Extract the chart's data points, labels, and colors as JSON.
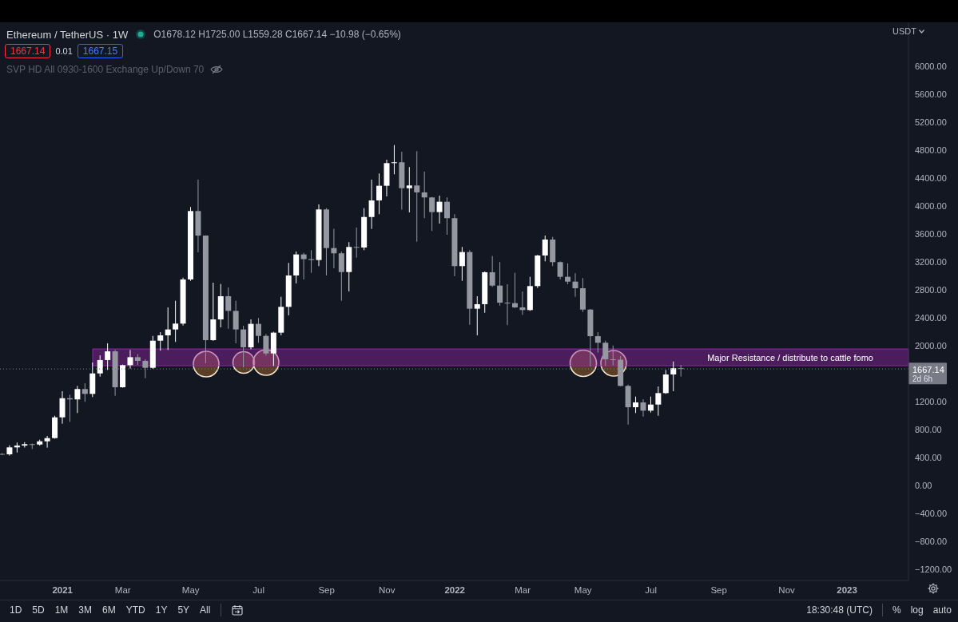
{
  "chart_data": {
    "type": "candlestick",
    "title": "Ethereum / TetherUS · 1W",
    "ylabel": "USDT",
    "x": [
      "2020-11-09",
      "2020-11-16",
      "2020-11-23",
      "2020-11-30",
      "2020-12-07",
      "2020-12-14",
      "2020-12-21",
      "2020-12-28",
      "2021-01-04",
      "2021-01-11",
      "2021-01-18",
      "2021-01-25",
      "2021-02-01",
      "2021-02-08",
      "2021-02-15",
      "2021-02-22",
      "2021-03-01",
      "2021-03-08",
      "2021-03-15",
      "2021-03-22",
      "2021-03-29",
      "2021-04-05",
      "2021-04-12",
      "2021-04-19",
      "2021-04-26",
      "2021-05-03",
      "2021-05-10",
      "2021-05-17",
      "2021-05-24",
      "2021-05-31",
      "2021-06-07",
      "2021-06-14",
      "2021-06-21",
      "2021-06-28",
      "2021-07-05",
      "2021-07-12",
      "2021-07-19",
      "2021-07-26",
      "2021-08-02",
      "2021-08-09",
      "2021-08-16",
      "2021-08-23",
      "2021-08-30",
      "2021-09-06",
      "2021-09-13",
      "2021-09-20",
      "2021-09-27",
      "2021-10-04",
      "2021-10-11",
      "2021-10-18",
      "2021-10-25",
      "2021-11-01",
      "2021-11-08",
      "2021-11-15",
      "2021-11-22",
      "2021-11-29",
      "2021-12-06",
      "2021-12-13",
      "2021-12-20",
      "2021-12-27",
      "2022-01-03",
      "2022-01-10",
      "2022-01-17",
      "2022-01-24",
      "2022-01-31",
      "2022-02-07",
      "2022-02-14",
      "2022-02-21",
      "2022-02-28",
      "2022-03-07",
      "2022-03-14",
      "2022-03-21",
      "2022-03-28",
      "2022-04-04",
      "2022-04-11",
      "2022-04-18",
      "2022-04-25",
      "2022-05-02",
      "2022-05-09",
      "2022-05-16",
      "2022-05-23",
      "2022-05-30",
      "2022-06-06",
      "2022-06-13",
      "2022-06-20",
      "2022-06-27",
      "2022-07-04",
      "2022-07-11",
      "2022-07-18",
      "2022-07-25",
      "2022-08-01"
    ],
    "ohlc": [
      [
        452,
        462,
        438,
        446
      ],
      [
        446,
        575,
        428,
        545
      ],
      [
        545,
        614,
        472,
        571
      ],
      [
        571,
        620,
        543,
        591
      ],
      [
        591,
        600,
        522,
        586
      ],
      [
        586,
        655,
        570,
        632
      ],
      [
        632,
        708,
        541,
        678
      ],
      [
        678,
        998,
        670,
        975
      ],
      [
        975,
        1349,
        884,
        1249
      ],
      [
        1249,
        1300,
        910,
        1232
      ],
      [
        1232,
        1425,
        1037,
        1380
      ],
      [
        1380,
        1463,
        1197,
        1311
      ],
      [
        1311,
        1760,
        1265,
        1604
      ],
      [
        1604,
        1863,
        1558,
        1795
      ],
      [
        1795,
        2035,
        1654,
        1920
      ],
      [
        1920,
        1940,
        1284,
        1406
      ],
      [
        1406,
        1730,
        1400,
        1722
      ],
      [
        1722,
        1939,
        1672,
        1836
      ],
      [
        1836,
        1880,
        1725,
        1784
      ],
      [
        1784,
        1806,
        1536,
        1684
      ],
      [
        1684,
        2141,
        1670,
        2072
      ],
      [
        2072,
        2194,
        1930,
        2149
      ],
      [
        2149,
        2549,
        1939,
        2233
      ],
      [
        2233,
        2644,
        2054,
        2317
      ],
      [
        2317,
        2975,
        2290,
        2949
      ],
      [
        2949,
        3986,
        2930,
        3928
      ],
      [
        3928,
        4378,
        3338,
        3577
      ],
      [
        3577,
        3580,
        1749,
        2080
      ],
      [
        2080,
        2903,
        2070,
        2377
      ],
      [
        2377,
        2884,
        2263,
        2709
      ],
      [
        2709,
        2835,
        2244,
        2499
      ],
      [
        2499,
        2644,
        2035,
        2233
      ],
      [
        2233,
        2286,
        1692,
        1977
      ],
      [
        1977,
        2377,
        1950,
        2313
      ],
      [
        2313,
        2397,
        2043,
        2141
      ],
      [
        2141,
        2168,
        1860,
        1890
      ],
      [
        1890,
        2200,
        1711,
        2187
      ],
      [
        2187,
        2701,
        2149,
        2557
      ],
      [
        2557,
        3185,
        2435,
        3006
      ],
      [
        3006,
        3349,
        2892,
        3307
      ],
      [
        3307,
        3330,
        2949,
        3240
      ],
      [
        3240,
        3368,
        3044,
        3227
      ],
      [
        3227,
        4023,
        3140,
        3951
      ],
      [
        3951,
        3970,
        3006,
        3398
      ],
      [
        3398,
        3673,
        3109,
        3323
      ],
      [
        3323,
        3349,
        2644,
        3055
      ],
      [
        3055,
        3483,
        2777,
        3414
      ],
      [
        3414,
        3692,
        3261,
        3406
      ],
      [
        3406,
        3970,
        3368,
        3843
      ],
      [
        3843,
        4378,
        3673,
        4080
      ],
      [
        4080,
        4466,
        3883,
        4290
      ],
      [
        4290,
        4663,
        4138,
        4614
      ],
      [
        4614,
        4873,
        4454,
        4626
      ],
      [
        4626,
        4777,
        3947,
        4255
      ],
      [
        4255,
        4558,
        3909,
        4294
      ],
      [
        4294,
        4785,
        3490,
        4195
      ],
      [
        4195,
        4492,
        3826,
        4123
      ],
      [
        4123,
        4130,
        3643,
        3913
      ],
      [
        3913,
        4149,
        3749,
        4061
      ],
      [
        4061,
        4123,
        3589,
        3826
      ],
      [
        3826,
        3883,
        2995,
        3140
      ],
      [
        3140,
        3414,
        2930,
        3341
      ],
      [
        3341,
        3368,
        2301,
        2530
      ],
      [
        2530,
        2709,
        2149,
        2595
      ],
      [
        2595,
        3063,
        2472,
        3052
      ],
      [
        3052,
        3284,
        2842,
        2861
      ],
      [
        2861,
        3197,
        2575,
        2617
      ],
      [
        2617,
        2880,
        2294,
        2610
      ],
      [
        2610,
        3044,
        2541,
        2549
      ],
      [
        2549,
        2777,
        2442,
        2511
      ],
      [
        2511,
        2987,
        2499,
        2854
      ],
      [
        2854,
        3300,
        2827,
        3292
      ],
      [
        3292,
        3578,
        3208,
        3520
      ],
      [
        3520,
        3558,
        3140,
        3197
      ],
      [
        3197,
        3208,
        2949,
        2987
      ],
      [
        2987,
        3178,
        2880,
        2918
      ],
      [
        2918,
        3037,
        2701,
        2823
      ],
      [
        2823,
        2968,
        2484,
        2518
      ],
      [
        2518,
        2525,
        1704,
        2137
      ],
      [
        2137,
        2194,
        1901,
        2043
      ],
      [
        2043,
        2072,
        1711,
        1806
      ],
      [
        1806,
        2003,
        1720,
        1800
      ],
      [
        1800,
        1850,
        1420,
        1425
      ],
      [
        1425,
        1443,
        872,
        1120
      ],
      [
        1120,
        1272,
        1037,
        1189
      ],
      [
        1189,
        1234,
        986,
        1071
      ],
      [
        1071,
        1272,
        1044,
        1158
      ],
      [
        1158,
        1417,
        998,
        1322
      ],
      [
        1322,
        1654,
        1311,
        1589
      ],
      [
        1589,
        1775,
        1349,
        1678.12
      ],
      [
        1678.12,
        1725.0,
        1559.28,
        1667.14
      ]
    ],
    "colors": [
      "#9598a1",
      "#ffffff",
      "#ffffff",
      "#ffffff",
      "#9598a1",
      "#ffffff",
      "#ffffff",
      "#ffffff",
      "#ffffff",
      "#9598a1",
      "#ffffff",
      "#9598a1",
      "#ffffff",
      "#ffffff",
      "#ffffff",
      "#9598a1",
      "#ffffff",
      "#ffffff",
      "#9598a1",
      "#9598a1",
      "#ffffff",
      "#ffffff",
      "#ffffff",
      "#ffffff",
      "#ffffff",
      "#ffffff",
      "#9598a1",
      "#9598a1",
      "#ffffff",
      "#ffffff",
      "#9598a1",
      "#9598a1",
      "#9598a1",
      "#ffffff",
      "#9598a1",
      "#9598a1",
      "#ffffff",
      "#ffffff",
      "#ffffff",
      "#ffffff",
      "#9598a1",
      "#9598a1",
      "#ffffff",
      "#9598a1",
      "#9598a1",
      "#9598a1",
      "#ffffff",
      "#9598a1",
      "#ffffff",
      "#ffffff",
      "#ffffff",
      "#ffffff",
      "#ffffff",
      "#9598a1",
      "#ffffff",
      "#9598a1",
      "#9598a1",
      "#9598a1",
      "#ffffff",
      "#9598a1",
      "#9598a1",
      "#ffffff",
      "#9598a1",
      "#ffffff",
      "#ffffff",
      "#9598a1",
      "#9598a1",
      "#9598a1",
      "#9598a1",
      "#9598a1",
      "#ffffff",
      "#ffffff",
      "#ffffff",
      "#9598a1",
      "#9598a1",
      "#9598a1",
      "#9598a1",
      "#9598a1",
      "#9598a1",
      "#9598a1",
      "#9598a1",
      "#9598a1",
      "#9598a1",
      "#9598a1",
      "#ffffff",
      "#9598a1",
      "#ffffff",
      "#ffffff",
      "#ffffff",
      "#ffffff",
      "#9598a1"
    ],
    "xlim": [
      "2020-11-07",
      "2023-02-28"
    ],
    "xticks": [
      {
        "value": "2021-01-04",
        "label": "2021"
      },
      {
        "value": "2021-03-01",
        "label": "Mar"
      },
      {
        "value": "2021-05-03",
        "label": "May"
      },
      {
        "value": "2021-07-05",
        "label": "Jul"
      },
      {
        "value": "2021-09-06",
        "label": "Sep"
      },
      {
        "value": "2021-11-01",
        "label": "Nov"
      },
      {
        "value": "2022-01-03",
        "label": "2022"
      },
      {
        "value": "2022-03-07",
        "label": "Mar"
      },
      {
        "value": "2022-05-02",
        "label": "May"
      },
      {
        "value": "2022-07-04",
        "label": "Jul"
      },
      {
        "value": "2022-09-05",
        "label": "Sep"
      },
      {
        "value": "2022-11-07",
        "label": "Nov"
      },
      {
        "value": "2023-01-02",
        "label": "2023"
      }
    ],
    "ylim": [
      -1360,
      6629
    ],
    "yticks": [
      {
        "value": -1200,
        "label": "−1200.00"
      },
      {
        "value": -800,
        "label": "−800.00"
      },
      {
        "value": -400,
        "label": "−400.00"
      },
      {
        "value": 0,
        "label": "0.00"
      },
      {
        "value": 400,
        "label": "400.00"
      },
      {
        "value": 800,
        "label": "800.00"
      },
      {
        "value": 1200,
        "label": "1200.00"
      },
      {
        "value": 2000,
        "label": "2000.00"
      },
      {
        "value": 2400,
        "label": "2400.00"
      },
      {
        "value": 2800,
        "label": "2800.00"
      },
      {
        "value": 3200,
        "label": "3200.00"
      },
      {
        "value": 3600,
        "label": "3600.00"
      },
      {
        "value": 4000,
        "label": "4000.00"
      },
      {
        "value": 4400,
        "label": "4400.00"
      },
      {
        "value": 4800,
        "label": "4800.00"
      },
      {
        "value": 5200,
        "label": "5200.00"
      },
      {
        "value": 5600,
        "label": "5600.00"
      },
      {
        "value": 6000,
        "label": "6000.00"
      }
    ],
    "bands": [
      {
        "axis": "y",
        "from": 1714,
        "to": 1954,
        "label": "Major Resistance / distribute to cattle fomo",
        "color": "#9c27b0"
      }
    ],
    "ref_lines": [
      {
        "axis": "y",
        "value": 1667.14,
        "label": "1667.14",
        "color": "#787b86",
        "line_style": "dotted"
      }
    ],
    "annotations": [
      "O1678.12 H1725.00 L1559.28 C1667.14 −10.98 (−0.65%)",
      "1667.14",
      "0.01",
      "1667.15",
      "SVP HD All 0930-1600 Exchange Up/Down 70",
      "2d 6h",
      "1D",
      "5D",
      "1M",
      "3M",
      "6M",
      "YTD",
      "1Y",
      "5Y",
      "All",
      "18:30:48 (UTC)",
      "%",
      "log",
      "auto"
    ]
  }
}
